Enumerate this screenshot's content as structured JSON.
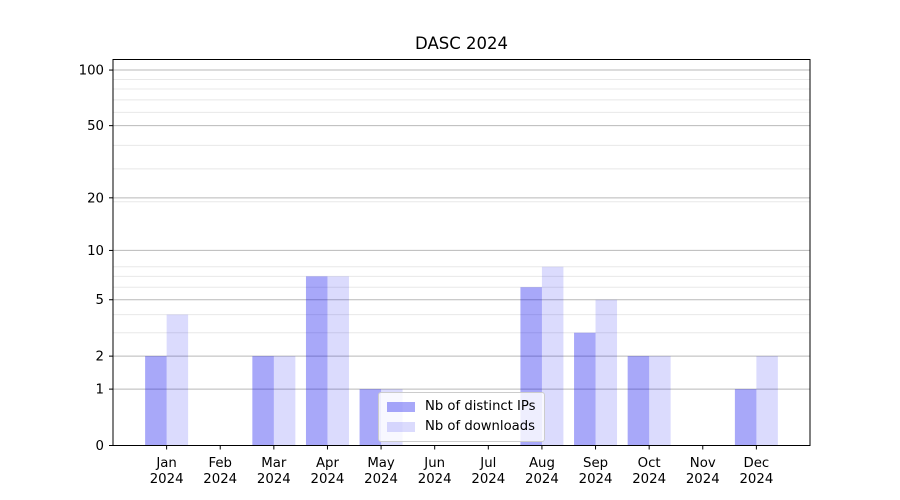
{
  "chart_data": {
    "type": "bar",
    "title": "DASC 2024",
    "categories": [
      "Jan",
      "Feb",
      "Mar",
      "Apr",
      "May",
      "Jun",
      "Jul",
      "Aug",
      "Sep",
      "Oct",
      "Nov",
      "Dec"
    ],
    "category_year": "2024",
    "series": [
      {
        "name": "Nb of distinct IPs",
        "color": "#0000ee",
        "alpha": 0.34,
        "values": [
          2,
          0,
          2,
          7,
          1,
          0,
          0,
          6,
          3,
          2,
          0,
          1
        ]
      },
      {
        "name": "Nb of downloads",
        "color": "#0000ee",
        "alpha": 0.14,
        "values": [
          4,
          0,
          2,
          7,
          1,
          0,
          0,
          8,
          5,
          2,
          0,
          2
        ]
      }
    ],
    "xlabel": "",
    "ylabel": "",
    "yscale": "log1p",
    "ylim": [
      0,
      114
    ],
    "yticks": [
      0,
      1,
      2,
      5,
      10,
      20,
      50,
      100
    ],
    "yticks_minor": [
      3,
      4,
      6,
      7,
      8,
      19,
      29,
      39,
      59,
      69,
      79,
      89
    ],
    "grid": true,
    "legend_position": "lower center",
    "colors": {
      "major_grid": "#b9b9b9",
      "minor_grid": "#e8e8e8",
      "spine": "#000000",
      "background": "#ffffff"
    }
  }
}
